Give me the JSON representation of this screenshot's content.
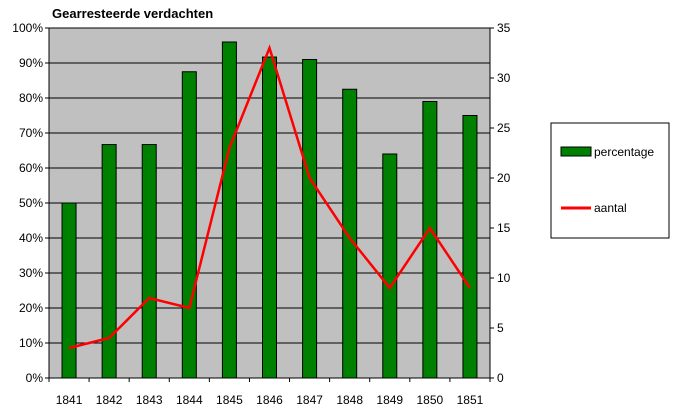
{
  "chart_data": {
    "type": "bar",
    "title": "Gearresteerde verdachten",
    "categories": [
      "1841",
      "1842",
      "1843",
      "1844",
      "1845",
      "1846",
      "1847",
      "1848",
      "1849",
      "1850",
      "1851"
    ],
    "series": [
      {
        "name": "percentage",
        "type": "bar",
        "axis": "left",
        "color": "#008000",
        "values": [
          50,
          66.7,
          66.7,
          87.5,
          96,
          91.7,
          91,
          82.5,
          64,
          79,
          75
        ]
      },
      {
        "name": "aantal",
        "type": "line",
        "axis": "right",
        "color": "#ff0000",
        "values": [
          3,
          4,
          8,
          7,
          23,
          33,
          20,
          14,
          9,
          15,
          9
        ]
      }
    ],
    "y_left": {
      "ylim": [
        0,
        100
      ],
      "ticks": [
        "0%",
        "10%",
        "20%",
        "30%",
        "40%",
        "50%",
        "60%",
        "70%",
        "80%",
        "90%",
        "100%"
      ]
    },
    "y_right": {
      "ylim": [
        0,
        35
      ],
      "ticks": [
        "0",
        "5",
        "10",
        "15",
        "20",
        "25",
        "30",
        "35"
      ]
    },
    "grid": true,
    "plot_background": "#c0c0c0",
    "legend_position": "right"
  }
}
